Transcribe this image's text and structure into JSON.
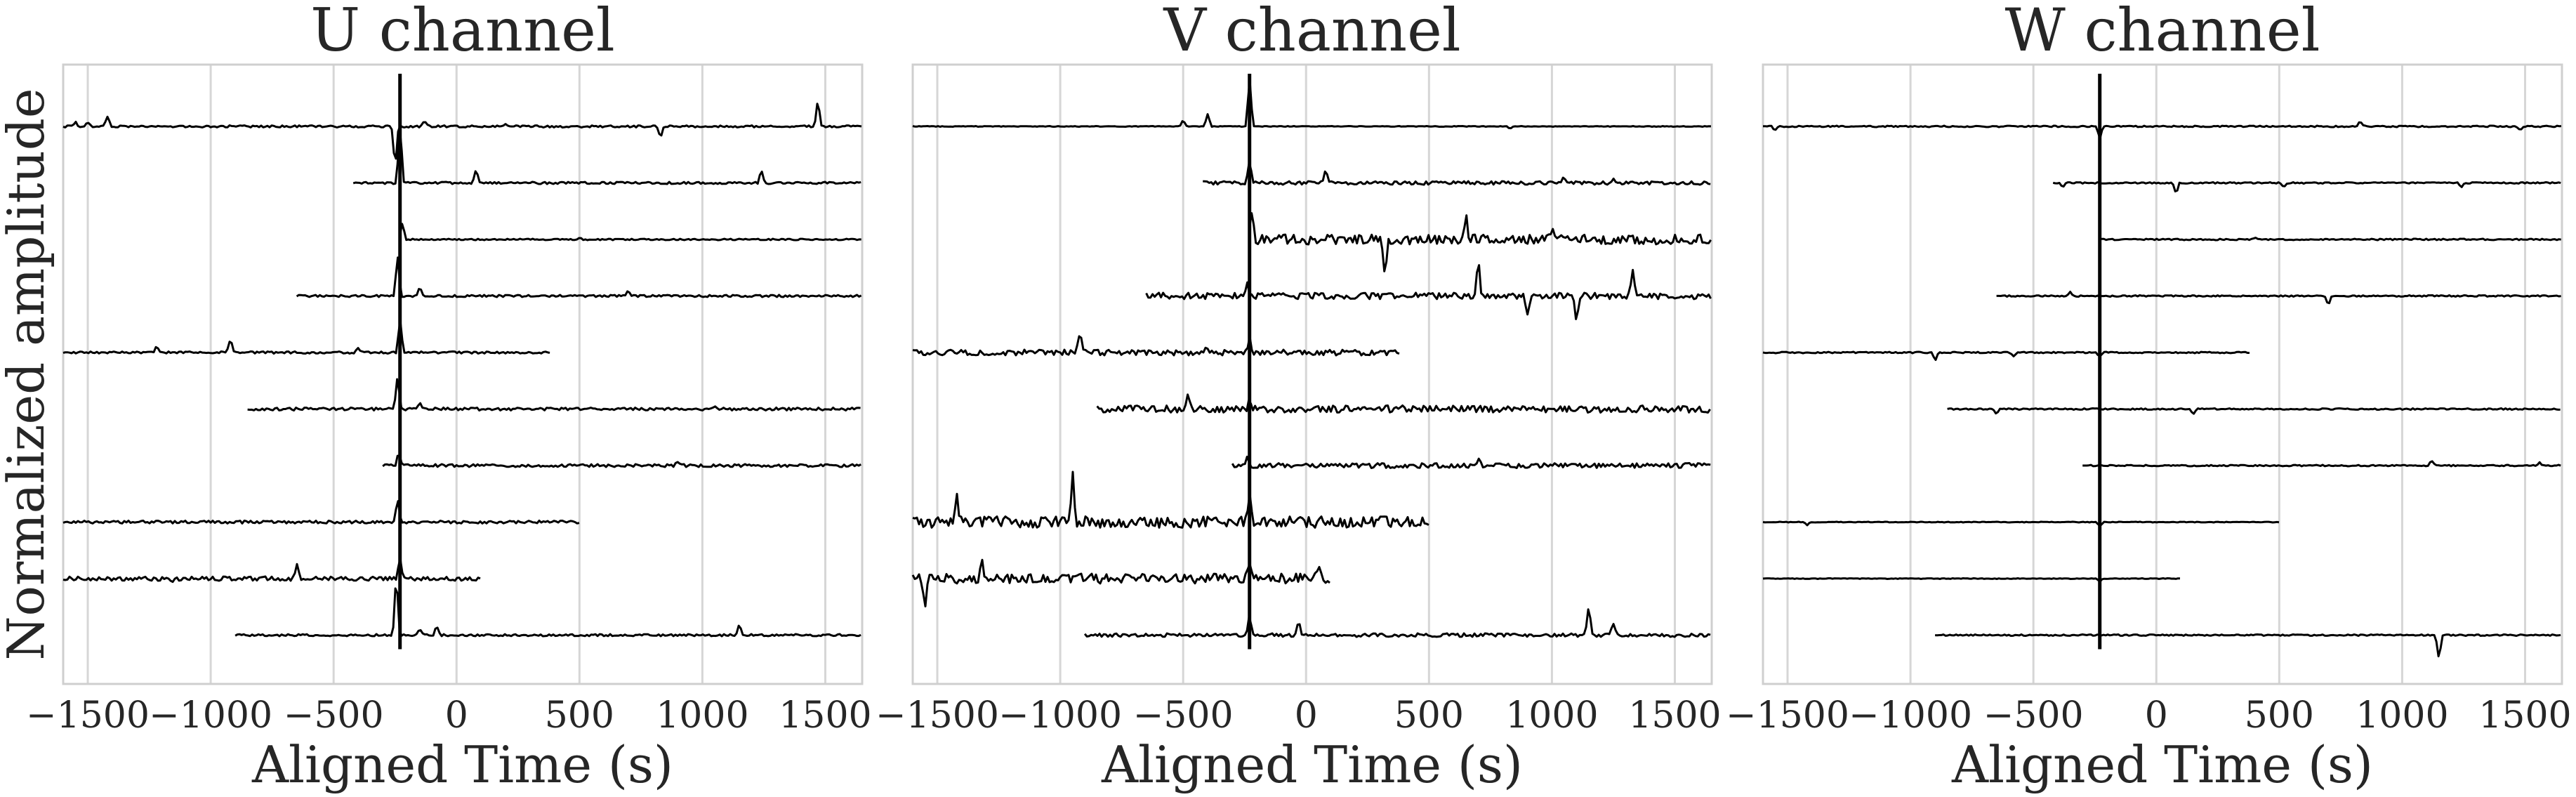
{
  "figure": {
    "ylabel": "Normalized amplitude"
  },
  "chart_data": [
    {
      "type": "line",
      "title": "U channel",
      "xlabel": "Aligned Time (s)",
      "ylabel": "Normalized amplitude",
      "xlim": [
        -1600,
        1650
      ],
      "xticks": [
        -1500,
        -1000,
        -500,
        0,
        500,
        1000,
        1500
      ],
      "xtick_labels": [
        "−1500",
        "−1000",
        "−500",
        "0",
        "500",
        "1000",
        "1500"
      ],
      "grid": true,
      "aligned_event_time": -230,
      "traces": [
        {
          "start": -1600,
          "end": 1650,
          "noise": 3,
          "spikes": [
            [
              -1550,
              -6
            ],
            [
              -1500,
              -5
            ],
            [
              -1420,
              -14
            ],
            [
              -250,
              60
            ],
            [
              -130,
              -7
            ],
            [
              200,
              -4
            ],
            [
              830,
              18
            ],
            [
              1470,
              -40
            ]
          ]
        },
        {
          "start": -420,
          "end": 1650,
          "noise": 3,
          "spikes": [
            [
              -230,
              -90
            ],
            [
              80,
              -20
            ],
            [
              1240,
              -18
            ]
          ]
        },
        {
          "start": -230,
          "end": 1650,
          "noise": 2,
          "spikes": [
            [
              -220,
              -25
            ],
            [
              500,
              -3
            ]
          ]
        },
        {
          "start": -650,
          "end": 1650,
          "noise": 3,
          "spikes": [
            [
              -240,
              -60
            ],
            [
              -150,
              -14
            ],
            [
              700,
              -8
            ]
          ]
        },
        {
          "start": -1600,
          "end": 380,
          "noise": 3,
          "spikes": [
            [
              -1220,
              -8
            ],
            [
              -920,
              -20
            ],
            [
              -400,
              -6
            ],
            [
              -230,
              -50
            ]
          ]
        },
        {
          "start": -850,
          "end": 1650,
          "noise": 4,
          "spikes": [
            [
              -240,
              -50
            ],
            [
              -150,
              -12
            ],
            [
              1050,
              -4
            ]
          ]
        },
        {
          "start": -300,
          "end": 1650,
          "noise": 4,
          "spikes": [
            [
              -235,
              -20
            ],
            [
              900,
              -5
            ]
          ]
        },
        {
          "start": -1600,
          "end": 500,
          "noise": 4,
          "spikes": [
            [
              -240,
              -35
            ]
          ]
        },
        {
          "start": -1600,
          "end": 100,
          "noise": 6,
          "spikes": [
            [
              -650,
              -22
            ],
            [
              -1150,
              4
            ],
            [
              -230,
              -30
            ]
          ]
        },
        {
          "start": -900,
          "end": 1650,
          "noise": 3,
          "spikes": [
            [
              -245,
              -90
            ],
            [
              -150,
              -10
            ],
            [
              -80,
              -14
            ],
            [
              1150,
              -16
            ]
          ]
        }
      ]
    },
    {
      "type": "line",
      "title": "V channel",
      "xlabel": "Aligned Time (s)",
      "ylabel": "",
      "xlim": [
        -1600,
        1650
      ],
      "xticks": [
        -1500,
        -1000,
        -500,
        0,
        500,
        1000,
        1500
      ],
      "xtick_labels": [
        "−1500",
        "−1000",
        "−500",
        "0",
        "500",
        "1000",
        "1500"
      ],
      "grid": true,
      "aligned_event_time": -230,
      "traces": [
        {
          "start": -1600,
          "end": 1650,
          "noise": 1,
          "spikes": [
            [
              -500,
              -10
            ],
            [
              -400,
              -18
            ],
            [
              -230,
              -70
            ],
            [
              830,
              4
            ]
          ]
        },
        {
          "start": -420,
          "end": 1650,
          "noise": 5,
          "spikes": [
            [
              -230,
              -30
            ],
            [
              80,
              -22
            ],
            [
              1050,
              -8
            ],
            [
              1250,
              -6
            ]
          ]
        },
        {
          "start": -230,
          "end": 1650,
          "noise": 14,
          "spikes": [
            [
              -220,
              -40
            ],
            [
              320,
              55
            ],
            [
              650,
              -40
            ],
            [
              1000,
              -20
            ]
          ]
        },
        {
          "start": -650,
          "end": 1650,
          "noise": 9,
          "spikes": [
            [
              -240,
              -20
            ],
            [
              700,
              -55
            ],
            [
              900,
              30
            ],
            [
              1100,
              40
            ],
            [
              1330,
              -35
            ]
          ]
        },
        {
          "start": -1600,
          "end": 380,
          "noise": 8,
          "spikes": [
            [
              -920,
              -30
            ],
            [
              -400,
              -8
            ],
            [
              -230,
              -20
            ]
          ]
        },
        {
          "start": -850,
          "end": 1650,
          "noise": 10,
          "spikes": [
            [
              -480,
              -18
            ],
            [
              -230,
              -10
            ]
          ]
        },
        {
          "start": -300,
          "end": 1650,
          "noise": 7,
          "spikes": [
            [
              -240,
              -12
            ],
            [
              700,
              -10
            ]
          ]
        },
        {
          "start": -1600,
          "end": 500,
          "noise": 16,
          "spikes": [
            [
              -1420,
              -35
            ],
            [
              -950,
              -70
            ],
            [
              -230,
              -35
            ]
          ]
        },
        {
          "start": -1600,
          "end": 100,
          "noise": 14,
          "spikes": [
            [
              -1550,
              40
            ],
            [
              -1320,
              -30
            ],
            [
              -230,
              -25
            ],
            [
              50,
              -25
            ]
          ]
        },
        {
          "start": -900,
          "end": 1650,
          "noise": 5,
          "spikes": [
            [
              -230,
              -30
            ],
            [
              -30,
              -20
            ],
            [
              1150,
              -45
            ],
            [
              1250,
              -18
            ]
          ]
        }
      ]
    },
    {
      "type": "line",
      "title": "W channel",
      "xlabel": "Aligned Time (s)",
      "ylabel": "",
      "xlim": [
        -1600,
        1650
      ],
      "xticks": [
        -1500,
        -1000,
        -500,
        0,
        500,
        1000,
        1500
      ],
      "xtick_labels": [
        "−1500",
        "−1000",
        "−500",
        "0",
        "500",
        "1000",
        "1500"
      ],
      "grid": true,
      "aligned_event_time": -230,
      "traces": [
        {
          "start": -1600,
          "end": 1650,
          "noise": 2,
          "spikes": [
            [
              -1550,
              6
            ],
            [
              -230,
              18
            ],
            [
              830,
              -8
            ],
            [
              1480,
              6
            ]
          ]
        },
        {
          "start": -420,
          "end": 1650,
          "noise": 2,
          "spikes": [
            [
              -380,
              6
            ],
            [
              80,
              16
            ],
            [
              520,
              6
            ],
            [
              1240,
              8
            ]
          ]
        },
        {
          "start": -230,
          "end": 1650,
          "noise": 2,
          "spikes": [
            [
              400,
              -3
            ]
          ]
        },
        {
          "start": -650,
          "end": 1650,
          "noise": 2,
          "spikes": [
            [
              -350,
              -6
            ],
            [
              700,
              14
            ]
          ]
        },
        {
          "start": -1600,
          "end": 380,
          "noise": 2,
          "spikes": [
            [
              -900,
              12
            ],
            [
              -580,
              6
            ],
            [
              -230,
              6
            ]
          ]
        },
        {
          "start": -850,
          "end": 1650,
          "noise": 2,
          "spikes": [
            [
              -650,
              8
            ],
            [
              150,
              8
            ]
          ]
        },
        {
          "start": -300,
          "end": 1650,
          "noise": 2,
          "spikes": [
            [
              1120,
              -8
            ],
            [
              1560,
              -4
            ]
          ]
        },
        {
          "start": -1600,
          "end": 500,
          "noise": 1,
          "spikes": [
            [
              -1420,
              4
            ],
            [
              -230,
              6
            ]
          ]
        },
        {
          "start": -1600,
          "end": 100,
          "noise": 1,
          "spikes": [
            [
              -230,
              4
            ]
          ]
        },
        {
          "start": -900,
          "end": 1650,
          "noise": 2,
          "spikes": [
            [
              1150,
              35
            ]
          ]
        }
      ]
    }
  ]
}
